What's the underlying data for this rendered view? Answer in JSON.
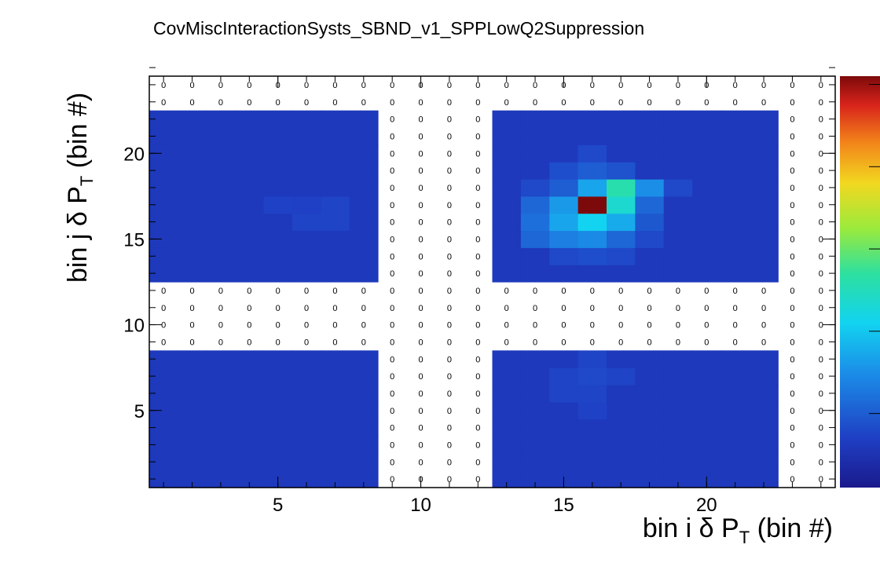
{
  "chart_data": {
    "type": "heatmap",
    "title": "CovMiscInteractionSysts_SBND_v1_SPPLowQ2Suppression",
    "xlabel": {
      "pre": "bin i ",
      "greek": "δ",
      "var": " P",
      "sub": "T",
      "post": " (bin #)"
    },
    "ylabel": {
      "pre": "bin j ",
      "greek": "δ",
      "var": " P",
      "sub": "T",
      "post": " (bin #)"
    },
    "x_range": [
      0,
      24
    ],
    "y_range": [
      0,
      24
    ],
    "x_ticks": [
      5,
      10,
      15,
      20
    ],
    "y_ticks": [
      5,
      10,
      15,
      20
    ],
    "nbins": 24,
    "zero_label": "0",
    "blocks": [
      {
        "x": [
          0,
          8
        ],
        "y": [
          0,
          8
        ]
      },
      {
        "x": [
          12,
          22
        ],
        "y": [
          0,
          8
        ]
      },
      {
        "x": [
          0,
          8
        ],
        "y": [
          12,
          22
        ]
      },
      {
        "x": [
          12,
          22
        ],
        "y": [
          12,
          22
        ]
      }
    ],
    "hot_cells": [
      {
        "i": 15,
        "j": 16,
        "z": 1.0
      },
      {
        "i": 16,
        "j": 16,
        "z": 0.45
      },
      {
        "i": 16,
        "j": 17,
        "z": 0.5
      },
      {
        "i": 15,
        "j": 17,
        "z": 0.32
      },
      {
        "i": 14,
        "j": 16,
        "z": 0.3
      },
      {
        "i": 17,
        "j": 17,
        "z": 0.28
      },
      {
        "i": 14,
        "j": 15,
        "z": 0.32
      },
      {
        "i": 15,
        "j": 15,
        "z": 0.4
      },
      {
        "i": 16,
        "j": 15,
        "z": 0.33
      },
      {
        "i": 13,
        "j": 15,
        "z": 0.22
      },
      {
        "i": 13,
        "j": 14,
        "z": 0.2
      },
      {
        "i": 14,
        "j": 14,
        "z": 0.25
      },
      {
        "i": 15,
        "j": 14,
        "z": 0.27
      },
      {
        "i": 13,
        "j": 16,
        "z": 0.2
      },
      {
        "i": 17,
        "j": 16,
        "z": 0.2
      },
      {
        "i": 15,
        "j": 18,
        "z": 0.18
      },
      {
        "i": 14,
        "j": 17,
        "z": 0.18
      },
      {
        "i": 16,
        "j": 18,
        "z": 0.16
      },
      {
        "i": 16,
        "j": 14,
        "z": 0.2
      },
      {
        "i": 14,
        "j": 18,
        "z": 0.15
      },
      {
        "i": 17,
        "j": 15,
        "z": 0.17
      },
      {
        "i": 18,
        "j": 17,
        "z": 0.14
      },
      {
        "i": 15,
        "j": 13,
        "z": 0.15
      },
      {
        "i": 14,
        "j": 13,
        "z": 0.14
      },
      {
        "i": 16,
        "j": 13,
        "z": 0.14
      },
      {
        "i": 17,
        "j": 14,
        "z": 0.14
      },
      {
        "i": 13,
        "j": 17,
        "z": 0.14
      },
      {
        "i": 15,
        "j": 19,
        "z": 0.14
      },
      {
        "i": 14,
        "j": 6,
        "z": 0.13
      },
      {
        "i": 15,
        "j": 6,
        "z": 0.14
      },
      {
        "i": 15,
        "j": 7,
        "z": 0.13
      },
      {
        "i": 16,
        "j": 6,
        "z": 0.13
      },
      {
        "i": 14,
        "j": 5,
        "z": 0.13
      },
      {
        "i": 15,
        "j": 5,
        "z": 0.13
      },
      {
        "i": 15,
        "j": 4,
        "z": 0.125
      },
      {
        "i": 6,
        "j": 15,
        "z": 0.13
      },
      {
        "i": 5,
        "j": 15,
        "z": 0.13
      },
      {
        "i": 6,
        "j": 16,
        "z": 0.13
      },
      {
        "i": 4,
        "j": 16,
        "z": 0.125
      },
      {
        "i": 5,
        "j": 16,
        "z": 0.12
      }
    ],
    "base_z": 0.1,
    "colorbar": "rainbow",
    "colorbar_ticks": 5
  }
}
